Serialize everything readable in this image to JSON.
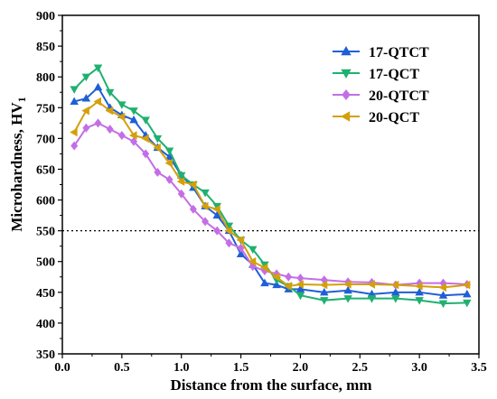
{
  "chart_data": {
    "type": "line",
    "xlabel": "Distance from the surface, mm",
    "ylabel_main": "Microhardness, HV",
    "ylabel_sub": "1",
    "xlim": [
      0.0,
      3.5
    ],
    "ylim": [
      350,
      900
    ],
    "xticks": [
      0.0,
      0.5,
      1.0,
      1.5,
      2.0,
      2.5,
      3.0,
      3.5
    ],
    "xtick_labels": [
      "0.0",
      "0.5",
      "1.0",
      "1.5",
      "2.0",
      "2.5",
      "3.0",
      "3.5"
    ],
    "yticks": [
      350,
      400,
      450,
      500,
      550,
      600,
      650,
      700,
      750,
      800,
      850,
      900
    ],
    "ytick_labels": [
      "350",
      "400",
      "450",
      "500",
      "550",
      "600",
      "650",
      "700",
      "750",
      "800",
      "850",
      "900"
    ],
    "reference_line": {
      "y": 550,
      "style": "dotted"
    },
    "legend_position": "top-right",
    "series": [
      {
        "name": "17-QTCT",
        "color": "#1f5fd6",
        "marker": "triangle-up",
        "x": [
          0.1,
          0.2,
          0.3,
          0.4,
          0.5,
          0.6,
          0.7,
          0.8,
          0.9,
          1.0,
          1.1,
          1.2,
          1.3,
          1.4,
          1.5,
          1.6,
          1.7,
          1.8,
          1.9,
          2.0,
          2.2,
          2.4,
          2.6,
          2.8,
          3.0,
          3.2,
          3.4
        ],
        "values": [
          760,
          765,
          783,
          750,
          738,
          730,
          705,
          685,
          670,
          640,
          620,
          590,
          575,
          550,
          512,
          495,
          465,
          462,
          455,
          455,
          450,
          453,
          447,
          450,
          450,
          445,
          447
        ]
      },
      {
        "name": "17-QCT",
        "color": "#20b070",
        "marker": "triangle-down",
        "x": [
          0.1,
          0.2,
          0.3,
          0.4,
          0.5,
          0.6,
          0.7,
          0.8,
          0.9,
          1.0,
          1.1,
          1.2,
          1.3,
          1.4,
          1.5,
          1.6,
          1.7,
          1.8,
          1.9,
          2.0,
          2.2,
          2.4,
          2.6,
          2.8,
          3.0,
          3.2,
          3.4
        ],
        "values": [
          780,
          800,
          815,
          775,
          755,
          745,
          730,
          700,
          680,
          640,
          625,
          612,
          590,
          558,
          535,
          520,
          495,
          470,
          460,
          445,
          437,
          440,
          440,
          440,
          437,
          432,
          433
        ]
      },
      {
        "name": "20-QTCT",
        "color": "#c36ee6",
        "marker": "diamond",
        "x": [
          0.1,
          0.2,
          0.3,
          0.4,
          0.5,
          0.6,
          0.7,
          0.8,
          0.9,
          1.0,
          1.1,
          1.2,
          1.3,
          1.4,
          1.5,
          1.6,
          1.7,
          1.8,
          1.9,
          2.0,
          2.2,
          2.4,
          2.6,
          2.8,
          3.0,
          3.2,
          3.4
        ],
        "values": [
          688,
          717,
          725,
          715,
          705,
          695,
          675,
          645,
          633,
          610,
          585,
          565,
          550,
          530,
          522,
          492,
          485,
          480,
          475,
          473,
          470,
          467,
          466,
          462,
          465,
          465,
          463
        ]
      },
      {
        "name": "20-QCT",
        "color": "#d4a00a",
        "marker": "triangle-left",
        "x": [
          0.1,
          0.2,
          0.3,
          0.4,
          0.5,
          0.6,
          0.7,
          0.8,
          0.9,
          1.0,
          1.1,
          1.2,
          1.3,
          1.4,
          1.5,
          1.6,
          1.7,
          1.8,
          1.9,
          2.0,
          2.2,
          2.4,
          2.6,
          2.8,
          3.0,
          3.2,
          3.4
        ],
        "values": [
          710,
          745,
          760,
          745,
          735,
          705,
          700,
          685,
          660,
          630,
          625,
          590,
          585,
          550,
          535,
          500,
          490,
          475,
          460,
          463,
          462,
          463,
          463,
          462,
          460,
          458,
          462
        ]
      }
    ]
  }
}
